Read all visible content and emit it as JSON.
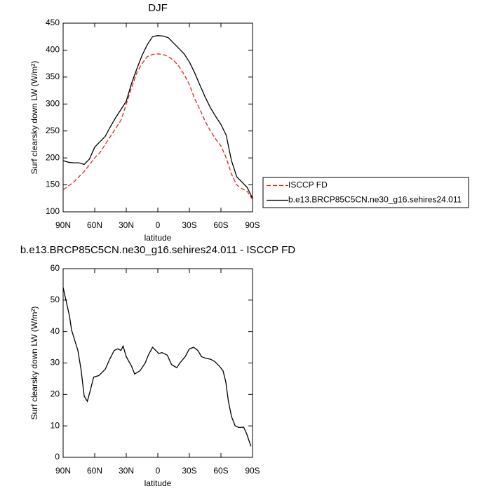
{
  "chart_data": [
    {
      "type": "line",
      "title": "DJF",
      "xlabel": "latitude",
      "ylabel": "Surf clearsky down LW (W/m²)",
      "xlim": [
        90,
        -90
      ],
      "xticks": [
        {
          "value": 90,
          "label": "90N"
        },
        {
          "value": 60,
          "label": "60N"
        },
        {
          "value": 30,
          "label": "30N"
        },
        0,
        {
          "value": -30,
          "label": "30S"
        },
        {
          "value": -60,
          "label": "60S"
        },
        {
          "value": -90,
          "label": "90S"
        }
      ],
      "ylim": [
        100,
        450
      ],
      "yticks": [
        100,
        150,
        200,
        250,
        300,
        350,
        400,
        450
      ],
      "x": [
        90,
        85,
        80,
        75,
        70,
        65,
        60,
        55,
        50,
        45,
        40,
        35,
        30,
        25,
        20,
        15,
        10,
        5,
        0,
        -5,
        -10,
        -15,
        -20,
        -25,
        -30,
        -35,
        -40,
        -45,
        -50,
        -55,
        -60,
        -65,
        -70,
        -75,
        -80,
        -85,
        -90
      ],
      "legend": "outside-right",
      "series": [
        {
          "name": "ISCCP FD",
          "color": "#e8201e",
          "line_style": "dashed",
          "values": [
            141,
            148,
            155,
            165,
            175,
            187,
            200,
            210,
            225,
            240,
            255,
            270,
            300,
            330,
            358,
            375,
            388,
            392,
            393,
            392,
            388,
            381,
            370,
            355,
            336,
            310,
            290,
            268,
            250,
            235,
            222,
            200,
            170,
            150,
            143,
            138,
            123
          ]
        },
        {
          "name": "b.e13.BRCP85C5CN.ne30_g16.sehires24.011",
          "color": "#000000",
          "line_style": "solid",
          "values": [
            195,
            192,
            191,
            191,
            188,
            198,
            220,
            230,
            240,
            258,
            275,
            290,
            305,
            338,
            365,
            390,
            410,
            425,
            427,
            426,
            423,
            413,
            403,
            393,
            378,
            358,
            335,
            313,
            293,
            277,
            262,
            242,
            195,
            165,
            155,
            145,
            125
          ]
        }
      ]
    },
    {
      "type": "line",
      "title": "b.e13.BRCP85C5CN.ne30_g16.sehires24.011 - ISCCP FD",
      "xlabel": "latitude",
      "ylabel": "Surf clearsky down LW (W/m²)",
      "xlim": [
        90,
        -90
      ],
      "xticks": [
        {
          "value": 90,
          "label": "90N"
        },
        {
          "value": 60,
          "label": "60N"
        },
        {
          "value": 30,
          "label": "30N"
        },
        0,
        {
          "value": -30,
          "label": "30S"
        },
        {
          "value": -60,
          "label": "60S"
        },
        {
          "value": -90,
          "label": "90S"
        }
      ],
      "ylim": [
        0,
        60
      ],
      "yticks": [
        0,
        10,
        20,
        30,
        40,
        50,
        60
      ],
      "x": [
        90,
        88,
        84,
        82,
        76,
        73,
        70,
        67,
        64,
        61,
        56,
        50,
        46,
        41.5,
        38,
        35,
        33,
        30,
        25,
        22,
        17,
        12,
        9,
        5,
        2,
        -1,
        -4,
        -9,
        -13,
        -18,
        -21,
        -26,
        -30,
        -34,
        -38,
        -41.5,
        -45.5,
        -50,
        -54,
        -58.5,
        -62,
        -64.6,
        -67,
        -70,
        -73.5,
        -77,
        -81.6,
        -84.4,
        -88.5
      ],
      "series": [
        {
          "color": "#000000",
          "line_style": "solid",
          "values": [
            54,
            51,
            45,
            40.5,
            34,
            28,
            19.5,
            17.8,
            21.5,
            25.5,
            26,
            28,
            31,
            34,
            34.5,
            34,
            35.4,
            32,
            29,
            26.5,
            27.5,
            30,
            32.5,
            35,
            34,
            33,
            33.3,
            32.5,
            29.5,
            28.5,
            30,
            32,
            34.5,
            35,
            34,
            32,
            31.5,
            31.2,
            30.5,
            29,
            27.5,
            24,
            18,
            13,
            10,
            9.5,
            9.6,
            7.5,
            3.5
          ]
        }
      ]
    }
  ]
}
